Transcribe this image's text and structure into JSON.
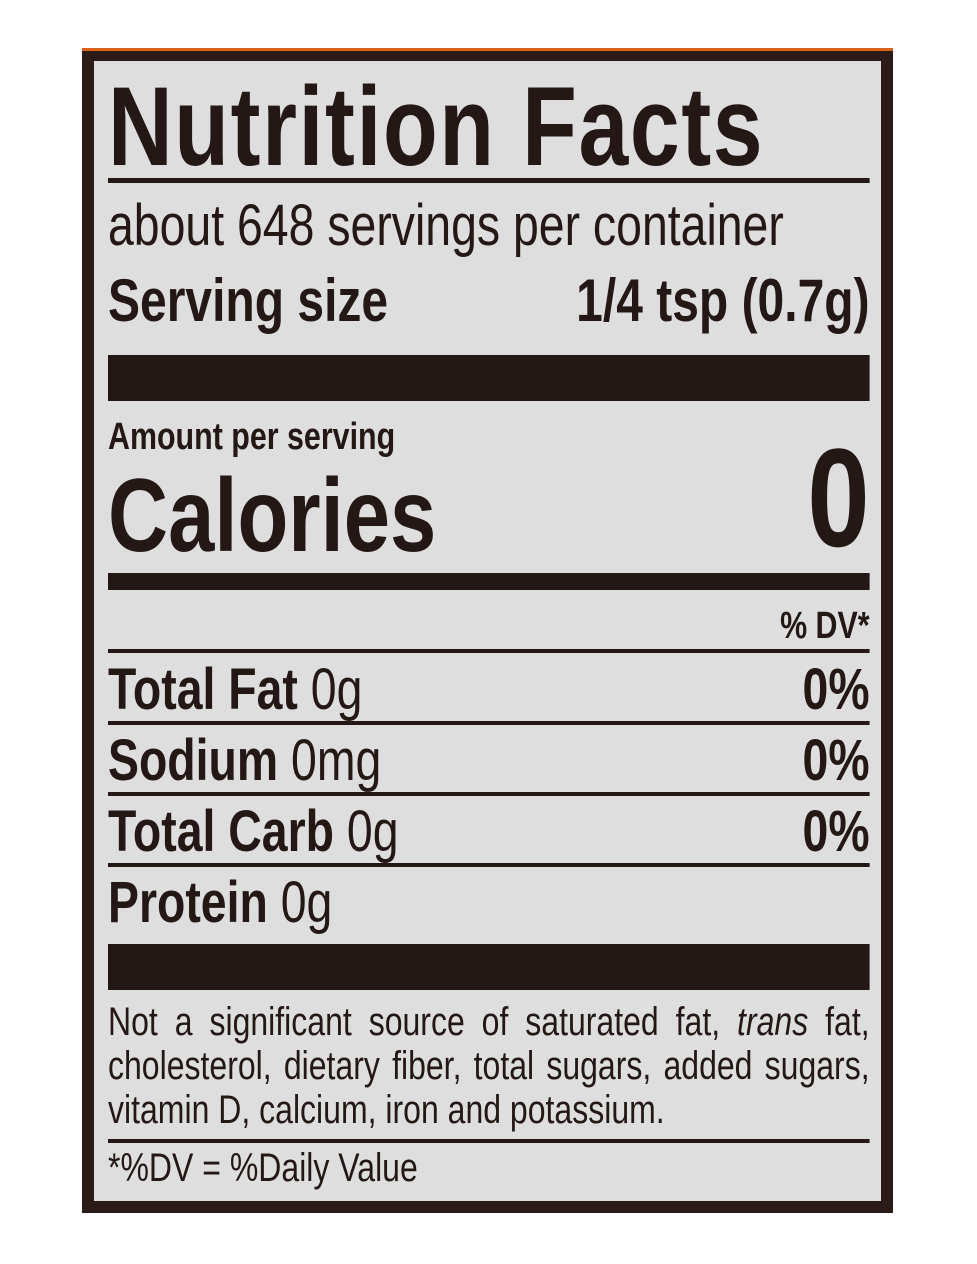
{
  "label": {
    "title": "Nutrition Facts",
    "servings": "about 648 servings per container",
    "serving_size_label": "Serving size",
    "serving_size_value": "1/4 tsp (0.7g)",
    "amount_per_serving": "Amount per serving",
    "calories_label": "Calories",
    "calories_value": "0",
    "dv_header": "% DV*",
    "nutrients": [
      {
        "name": "Total Fat",
        "amount": "0g",
        "dv": "0%"
      },
      {
        "name": "Sodium",
        "amount": "0mg",
        "dv": "0%"
      },
      {
        "name": "Total Carb",
        "amount": "0g",
        "dv": "0%"
      },
      {
        "name": "Protein",
        "amount": "0g",
        "dv": ""
      }
    ],
    "footnote_pre": "Not a significant source of saturated fat, ",
    "footnote_italic": "trans",
    "footnote_post": " fat, cholesterol, dietary fiber, total sugars, added sugars, vitamin D, calcium, iron and potassium.",
    "dv_note": "*%DV = %Daily Value"
  },
  "colors": {
    "border": "#2a1b18",
    "accent": "#d8621a",
    "background": "#dedede",
    "ink": "#231815"
  }
}
